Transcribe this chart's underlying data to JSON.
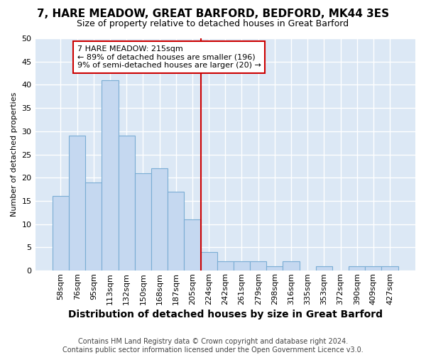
{
  "title": "7, HARE MEADOW, GREAT BARFORD, BEDFORD, MK44 3ES",
  "subtitle": "Size of property relative to detached houses in Great Barford",
  "xlabel": "Distribution of detached houses by size in Great Barford",
  "ylabel": "Number of detached properties",
  "categories": [
    "58sqm",
    "76sqm",
    "95sqm",
    "113sqm",
    "132sqm",
    "150sqm",
    "168sqm",
    "187sqm",
    "205sqm",
    "224sqm",
    "242sqm",
    "261sqm",
    "279sqm",
    "298sqm",
    "316sqm",
    "335sqm",
    "353sqm",
    "372sqm",
    "390sqm",
    "409sqm",
    "427sqm"
  ],
  "values": [
    16,
    29,
    19,
    41,
    29,
    21,
    22,
    17,
    11,
    4,
    2,
    2,
    2,
    1,
    2,
    0,
    1,
    0,
    1,
    1,
    1
  ],
  "bar_color": "#c5d8f0",
  "bar_edge_color": "#7aadd4",
  "background_color": "#dce8f5",
  "grid_color": "#ffffff",
  "vline_x": 8.5,
  "vline_color": "#cc0000",
  "annotation_text": "7 HARE MEADOW: 215sqm\n← 89% of detached houses are smaller (196)\n9% of semi-detached houses are larger (20) →",
  "annotation_box_color": "#ffffff",
  "annotation_box_edge": "#cc0000",
  "footer": "Contains HM Land Registry data © Crown copyright and database right 2024.\nContains public sector information licensed under the Open Government Licence v3.0.",
  "ylim": [
    0,
    50
  ],
  "title_fontsize": 11,
  "subtitle_fontsize": 9,
  "xlabel_fontsize": 10,
  "ylabel_fontsize": 8,
  "tick_fontsize": 8,
  "footer_fontsize": 7
}
